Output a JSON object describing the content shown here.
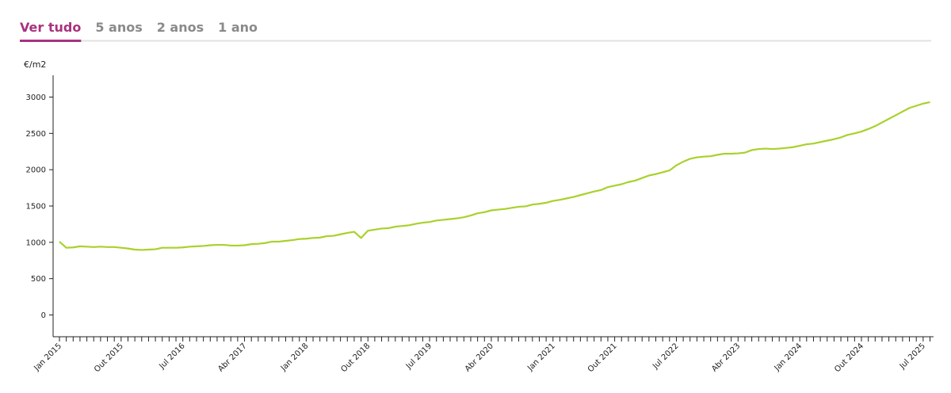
{
  "tabs": [
    "Ver tudo",
    "5 anos",
    "2 anos",
    "1 ano"
  ],
  "active_tab": 0,
  "chart_data": {
    "type": "line",
    "y_label": "€/m2",
    "color": "#a9d12b",
    "categories": [
      "Jan 2015",
      null,
      null,
      null,
      null,
      null,
      null,
      null,
      null,
      "Out 2015",
      null,
      null,
      null,
      null,
      null,
      null,
      null,
      null,
      "Jul 2016",
      null,
      null,
      null,
      null,
      null,
      null,
      null,
      null,
      "Abr 2017",
      null,
      null,
      null,
      null,
      null,
      null,
      null,
      null,
      "Jan 2018",
      null,
      null,
      null,
      null,
      null,
      null,
      null,
      null,
      "Out 2018",
      null,
      null,
      null,
      null,
      null,
      null,
      null,
      null,
      "Jul 2019",
      null,
      null,
      null,
      null,
      null,
      null,
      null,
      null,
      "Abr 2020",
      null,
      null,
      null,
      null,
      null,
      null,
      null,
      null,
      "Jan 2021",
      null,
      null,
      null,
      null,
      null,
      null,
      null,
      null,
      "Out 2021",
      null,
      null,
      null,
      null,
      null,
      null,
      null,
      null,
      "Jul 2022",
      null,
      null,
      null,
      null,
      null,
      null,
      null,
      null,
      "Abr 2023",
      null,
      null,
      null,
      null,
      null,
      null,
      null,
      null,
      "Jan 2024",
      null,
      null,
      null,
      null,
      null,
      null,
      null,
      null,
      "Out 2024",
      null,
      null,
      null,
      null,
      null,
      null,
      null,
      null,
      "Jul 2025",
      null
    ],
    "values": [
      1010,
      925,
      930,
      945,
      940,
      935,
      940,
      935,
      935,
      925,
      915,
      900,
      895,
      900,
      905,
      925,
      925,
      925,
      930,
      940,
      945,
      950,
      960,
      965,
      965,
      955,
      955,
      960,
      975,
      980,
      990,
      1010,
      1010,
      1020,
      1030,
      1045,
      1050,
      1060,
      1065,
      1085,
      1090,
      1110,
      1130,
      1145,
      1060,
      1160,
      1175,
      1190,
      1195,
      1215,
      1225,
      1235,
      1255,
      1270,
      1280,
      1300,
      1310,
      1320,
      1330,
      1345,
      1370,
      1400,
      1415,
      1440,
      1450,
      1460,
      1475,
      1490,
      1495,
      1520,
      1530,
      1545,
      1570,
      1585,
      1605,
      1625,
      1650,
      1675,
      1700,
      1720,
      1760,
      1780,
      1800,
      1830,
      1850,
      1885,
      1920,
      1940,
      1965,
      1990,
      2060,
      2110,
      2150,
      2170,
      2180,
      2185,
      2205,
      2220,
      2220,
      2225,
      2235,
      2270,
      2285,
      2290,
      2285,
      2290,
      2300,
      2310,
      2330,
      2350,
      2360,
      2380,
      2400,
      2420,
      2445,
      2480,
      2500,
      2525,
      2560,
      2600,
      2650,
      2700,
      2750,
      2800,
      2850,
      2880,
      2910,
      2930
    ],
    "ylim": [
      -300,
      3300
    ],
    "yticks": [
      0,
      500,
      1000,
      1500,
      2000,
      2500,
      3000
    ]
  }
}
